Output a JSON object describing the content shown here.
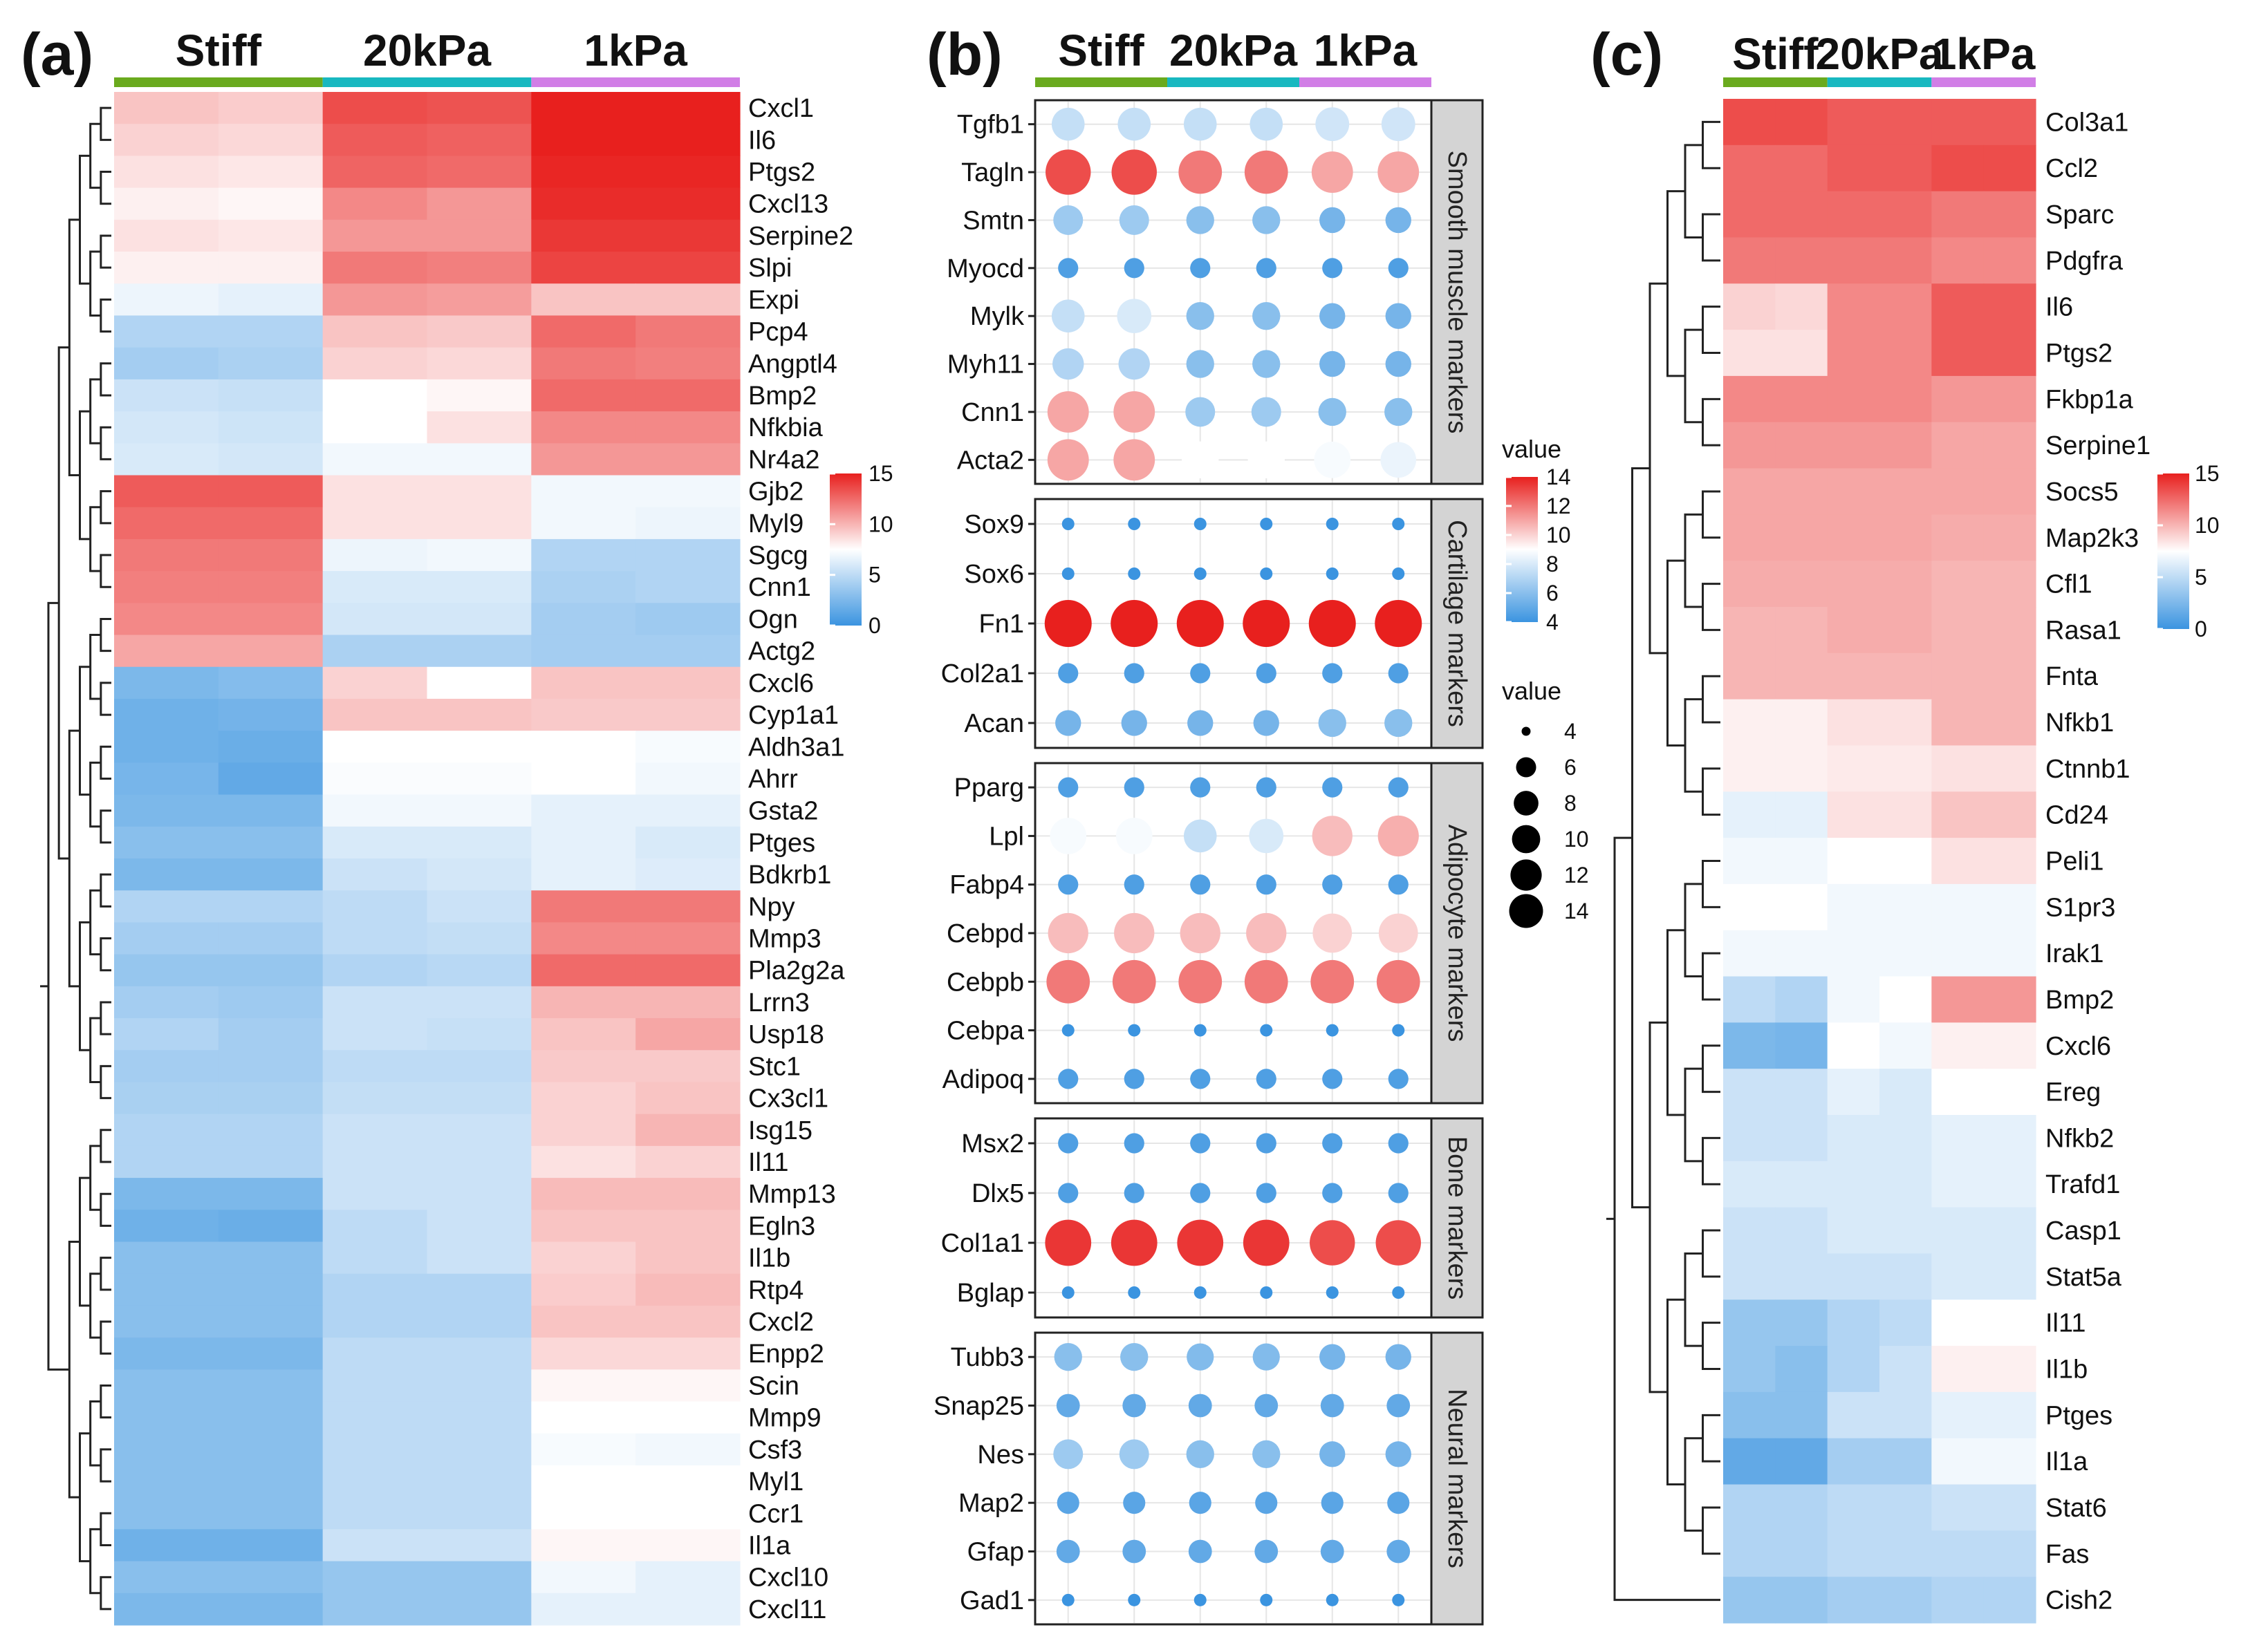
{
  "colors": {
    "stiff": "#6aaa1e",
    "kpa20": "#18b8c0",
    "kpa1": "#d17ee6",
    "low": "#3b94e0",
    "mid": "#ffffff",
    "high": "#e8201e",
    "strip": "#d4d4d4"
  },
  "chart_data": [
    {
      "type": "heatmap",
      "panel": "(a)",
      "groups": [
        "Stiff",
        "20kPa",
        "1kPa"
      ],
      "columns_per_group": 2,
      "legend": {
        "min": 0,
        "max": 15,
        "ticks": [
          15,
          10,
          5,
          0
        ]
      },
      "rows": [
        "Cxcl1",
        "Il6",
        "Ptgs2",
        "Cxcl13",
        "Serpine2",
        "Slpi",
        "Expi",
        "Pcp4",
        "Angptl4",
        "Bmp2",
        "Nfkbia",
        "Nr4a2",
        "Gjb2",
        "Myl9",
        "Sgcg",
        "Cnn1",
        "Ogn",
        "Actg2",
        "Cxcl6",
        "Cyp1a1",
        "Aldh3a1",
        "Ahrr",
        "Gsta2",
        "Ptges",
        "Bdkrb1",
        "Npy",
        "Mmp3",
        "Pla2g2a",
        "Lrrn3",
        "Usp18",
        "Stc1",
        "Cx3cl1",
        "Isg15",
        "Il11",
        "Mmp13",
        "Egln3",
        "Il1b",
        "Rtp4",
        "Cxcl2",
        "Enpp2",
        "Scin",
        "Mmp9",
        "Csf3",
        "Myl1",
        "Ccr1",
        "Il1a",
        "Cxcl10",
        "Cxcl11"
      ],
      "values": [
        [
          9.5,
          9.2,
          13.5,
          13.3,
          15.0,
          15.0
        ],
        [
          9.0,
          8.8,
          13.0,
          12.8,
          15.0,
          15.0
        ],
        [
          8.5,
          8.3,
          12.7,
          12.5,
          14.8,
          14.8
        ],
        [
          8.0,
          7.8,
          11.5,
          11.0,
          14.6,
          14.6
        ],
        [
          8.5,
          8.3,
          11.0,
          11.0,
          14.2,
          14.2
        ],
        [
          8.0,
          8.0,
          12.0,
          11.8,
          13.8,
          13.8
        ],
        [
          6.8,
          6.5,
          11.0,
          10.8,
          9.5,
          9.5
        ],
        [
          4.5,
          4.5,
          9.5,
          9.3,
          12.5,
          12.0
        ],
        [
          4.0,
          4.3,
          9.0,
          8.8,
          12.0,
          11.8
        ],
        [
          5.5,
          5.3,
          7.5,
          7.8,
          12.5,
          12.5
        ],
        [
          5.8,
          5.6,
          7.5,
          8.5,
          11.5,
          11.5
        ],
        [
          6.0,
          5.8,
          7.0,
          7.0,
          11.0,
          11.0
        ],
        [
          13.0,
          13.0,
          8.5,
          8.5,
          7.0,
          7.0
        ],
        [
          12.5,
          12.5,
          8.5,
          8.5,
          7.0,
          6.8
        ],
        [
          12.0,
          12.0,
          6.8,
          7.0,
          4.5,
          4.5
        ],
        [
          11.8,
          11.8,
          6.0,
          6.0,
          4.3,
          4.5
        ],
        [
          11.5,
          11.5,
          5.8,
          5.8,
          4.0,
          3.8
        ],
        [
          10.5,
          10.5,
          4.3,
          4.3,
          4.0,
          4.0
        ],
        [
          2.5,
          2.8,
          9.0,
          7.5,
          9.5,
          9.5
        ],
        [
          2.0,
          2.2,
          9.5,
          9.5,
          9.3,
          9.3
        ],
        [
          2.0,
          1.8,
          7.5,
          7.5,
          7.5,
          7.2
        ],
        [
          2.3,
          1.5,
          7.3,
          7.3,
          7.5,
          7.0
        ],
        [
          2.5,
          2.5,
          7.0,
          7.0,
          6.5,
          6.5
        ],
        [
          3.0,
          3.0,
          6.0,
          6.0,
          6.5,
          6.0
        ],
        [
          2.5,
          2.5,
          5.5,
          5.8,
          6.5,
          6.2
        ],
        [
          4.5,
          4.5,
          5.0,
          5.5,
          12.0,
          12.0
        ],
        [
          4.0,
          4.0,
          5.0,
          5.2,
          11.5,
          11.5
        ],
        [
          3.5,
          3.5,
          4.5,
          4.8,
          12.5,
          12.5
        ],
        [
          4.0,
          3.8,
          5.5,
          5.5,
          10.0,
          10.0
        ],
        [
          4.5,
          4.0,
          5.5,
          5.3,
          9.5,
          10.5
        ],
        [
          4.0,
          4.0,
          5.0,
          5.0,
          9.3,
          9.3
        ],
        [
          4.2,
          4.2,
          5.2,
          5.2,
          9.0,
          9.5
        ],
        [
          4.5,
          4.5,
          5.5,
          5.5,
          9.0,
          10.0
        ],
        [
          4.5,
          4.5,
          5.5,
          5.5,
          8.5,
          9.0
        ],
        [
          2.5,
          2.5,
          5.5,
          5.5,
          9.8,
          9.8
        ],
        [
          2.0,
          1.8,
          5.0,
          5.5,
          9.5,
          9.5
        ],
        [
          3.0,
          3.0,
          5.0,
          5.5,
          9.0,
          9.5
        ],
        [
          3.0,
          3.0,
          4.5,
          4.5,
          9.2,
          9.8
        ],
        [
          3.0,
          3.0,
          4.5,
          4.5,
          9.5,
          9.5
        ],
        [
          2.5,
          2.5,
          5.0,
          5.0,
          8.8,
          8.8
        ],
        [
          3.0,
          3.0,
          5.0,
          5.0,
          7.8,
          7.8
        ],
        [
          3.0,
          3.0,
          5.0,
          5.0,
          7.5,
          7.5
        ],
        [
          3.0,
          3.0,
          5.0,
          5.0,
          7.2,
          7.0
        ],
        [
          3.0,
          3.0,
          5.0,
          5.0,
          7.5,
          7.5
        ],
        [
          3.0,
          3.0,
          5.0,
          5.0,
          7.5,
          7.5
        ],
        [
          2.0,
          2.0,
          5.5,
          5.5,
          7.8,
          7.8
        ],
        [
          3.0,
          3.0,
          3.5,
          3.5,
          7.0,
          6.5
        ],
        [
          2.5,
          2.5,
          3.5,
          3.5,
          6.5,
          6.5
        ]
      ]
    },
    {
      "type": "scatter",
      "subtype": "dot-plot",
      "panel": "(b)",
      "groups": [
        "Stiff",
        "20kPa",
        "1kPa"
      ],
      "columns_per_group": 2,
      "color_legend": {
        "title": "value",
        "min": 4,
        "max": 14,
        "ticks": [
          14,
          12,
          10,
          8,
          6,
          4
        ]
      },
      "size_legend": {
        "title": "value",
        "ticks": [
          4,
          6,
          8,
          10,
          12,
          14
        ]
      },
      "facets": [
        {
          "label": "Smooth muscle markers",
          "genes": [
            "Tgfb1",
            "Tagln",
            "Smtn",
            "Myocd",
            "Mylk",
            "Myh11",
            "Cnn1",
            "Acta2"
          ],
          "values": [
            [
              7.5,
              7.5,
              7.5,
              7.5,
              7.8,
              7.8
            ],
            [
              13.0,
              13.0,
              12.0,
              12.0,
              11.0,
              11.0
            ],
            [
              6.5,
              6.5,
              6.0,
              6.0,
              5.5,
              5.5
            ],
            [
              4.5,
              4.5,
              4.5,
              4.5,
              4.5,
              4.5
            ],
            [
              7.5,
              8.0,
              6.0,
              6.0,
              5.5,
              5.5
            ],
            [
              7.0,
              7.0,
              6.0,
              6.0,
              5.5,
              5.5
            ],
            [
              11.0,
              11.0,
              6.5,
              6.5,
              6.0,
              6.0
            ],
            [
              11.0,
              11.0,
              9.0,
              9.0,
              8.8,
              8.5
            ]
          ]
        },
        {
          "label": "Cartilage markers",
          "genes": [
            "Sox9",
            "Sox6",
            "Fn1",
            "Col2a1",
            "Acan"
          ],
          "values": [
            [
              4.0,
              4.0,
              4.0,
              4.0,
              4.0,
              4.0
            ],
            [
              3.5,
              3.5,
              3.5,
              3.5,
              3.5,
              3.5
            ],
            [
              14.0,
              14.0,
              14.0,
              14.0,
              14.0,
              14.0
            ],
            [
              4.5,
              4.5,
              4.5,
              4.5,
              4.5,
              4.5
            ],
            [
              5.5,
              5.5,
              5.5,
              5.5,
              6.0,
              6.0
            ]
          ]
        },
        {
          "label": "Adipocyte markers",
          "genes": [
            "Pparg",
            "Lpl",
            "Fabp4",
            "Cebpd",
            "Cebpb",
            "Cebpa",
            "Adipoq"
          ],
          "values": [
            [
              4.5,
              4.5,
              4.5,
              4.5,
              4.5,
              4.5
            ],
            [
              8.8,
              8.8,
              7.5,
              8.0,
              10.5,
              10.8
            ],
            [
              4.5,
              4.5,
              4.5,
              4.5,
              4.5,
              4.5
            ],
            [
              10.5,
              10.5,
              10.5,
              10.5,
              10.0,
              10.0
            ],
            [
              12.0,
              12.0,
              12.0,
              12.0,
              12.0,
              12.0
            ],
            [
              4.0,
              4.0,
              4.0,
              4.0,
              4.0,
              4.0
            ],
            [
              4.5,
              4.5,
              4.5,
              4.5,
              4.5,
              4.5
            ]
          ]
        },
        {
          "label": "Bone markers",
          "genes": [
            "Msx2",
            "Dlx5",
            "Col1a1",
            "Bglap"
          ],
          "values": [
            [
              4.5,
              4.5,
              4.5,
              4.5,
              4.5,
              4.5
            ],
            [
              4.5,
              4.5,
              4.5,
              4.5,
              4.5,
              4.5
            ],
            [
              13.5,
              13.5,
              13.5,
              13.5,
              13.0,
              13.0
            ],
            [
              4.0,
              4.0,
              4.0,
              4.0,
              4.0,
              4.0
            ]
          ]
        },
        {
          "label": "Neural markers",
          "genes": [
            "Tubb3",
            "Snap25",
            "Nes",
            "Map2",
            "Gfap",
            "Gad1"
          ],
          "values": [
            [
              6.0,
              6.0,
              5.8,
              5.8,
              5.5,
              5.5
            ],
            [
              5.0,
              5.0,
              5.0,
              5.0,
              5.0,
              5.0
            ],
            [
              6.5,
              6.5,
              6.0,
              6.0,
              5.5,
              5.5
            ],
            [
              4.8,
              4.8,
              4.8,
              4.8,
              4.8,
              4.8
            ],
            [
              5.0,
              5.0,
              5.0,
              5.0,
              5.0,
              5.0
            ],
            [
              4.0,
              4.0,
              4.0,
              4.0,
              4.0,
              4.0
            ]
          ]
        }
      ]
    },
    {
      "type": "heatmap",
      "panel": "(c)",
      "groups": [
        "Stiff",
        "20kPa",
        "1kPa"
      ],
      "columns_per_group": 2,
      "legend": {
        "min": 0,
        "max": 15,
        "ticks": [
          15,
          10,
          5,
          0
        ]
      },
      "rows": [
        "Col3a1",
        "Ccl2",
        "Sparc",
        "Pdgfra",
        "Il6",
        "Ptgs2",
        "Fkbp1a",
        "Serpine1",
        "Socs5",
        "Map2k3",
        "Cfl1",
        "Rasa1",
        "Fnta",
        "Nfkb1",
        "Ctnnb1",
        "Cd24",
        "Peli1",
        "S1pr3",
        "Irak1",
        "Bmp2",
        "Cxcl6",
        "Ereg",
        "Nfkb2",
        "Trafd1",
        "Casp1",
        "Stat5a",
        "Il11",
        "Il1b",
        "Ptges",
        "Il1a",
        "Stat6",
        "Fas",
        "Cish2"
      ],
      "values": [
        [
          13.5,
          13.5,
          13.0,
          13.0,
          13.0,
          13.0
        ],
        [
          12.5,
          12.5,
          13.0,
          13.0,
          13.5,
          13.5
        ],
        [
          12.5,
          12.5,
          12.5,
          12.5,
          12.0,
          12.0
        ],
        [
          12.0,
          12.0,
          12.0,
          12.0,
          11.5,
          11.5
        ],
        [
          9.0,
          8.8,
          11.5,
          11.5,
          13.0,
          13.0
        ],
        [
          8.5,
          8.5,
          11.5,
          11.5,
          13.0,
          13.0
        ],
        [
          11.5,
          11.5,
          11.5,
          11.5,
          11.0,
          11.0
        ],
        [
          11.0,
          11.0,
          11.0,
          11.0,
          10.5,
          10.5
        ],
        [
          10.5,
          10.5,
          10.5,
          10.5,
          10.5,
          10.5
        ],
        [
          10.5,
          10.5,
          10.5,
          10.5,
          10.3,
          10.3
        ],
        [
          10.3,
          10.3,
          10.3,
          10.3,
          10.0,
          10.0
        ],
        [
          10.0,
          10.0,
          10.3,
          10.3,
          10.0,
          10.0
        ],
        [
          10.0,
          10.0,
          10.0,
          10.0,
          10.0,
          10.0
        ],
        [
          8.0,
          8.0,
          8.5,
          8.5,
          10.0,
          10.0
        ],
        [
          8.0,
          8.0,
          8.2,
          8.2,
          8.5,
          8.5
        ],
        [
          6.5,
          6.5,
          8.5,
          8.5,
          9.5,
          9.5
        ],
        [
          7.0,
          7.0,
          7.5,
          7.5,
          8.5,
          8.5
        ],
        [
          7.5,
          7.5,
          7.0,
          7.0,
          7.0,
          7.0
        ],
        [
          7.0,
          7.0,
          7.0,
          7.0,
          7.0,
          7.0
        ],
        [
          5.0,
          4.5,
          7.0,
          7.5,
          11.0,
          11.0
        ],
        [
          2.5,
          2.3,
          7.5,
          7.0,
          8.0,
          8.0
        ],
        [
          5.5,
          5.5,
          6.5,
          6.0,
          7.5,
          7.5
        ],
        [
          5.5,
          5.5,
          6.0,
          6.0,
          6.5,
          6.5
        ],
        [
          6.0,
          6.0,
          6.0,
          6.0,
          6.5,
          6.5
        ],
        [
          5.5,
          5.5,
          6.0,
          6.0,
          6.0,
          6.0
        ],
        [
          5.5,
          5.5,
          5.5,
          5.5,
          6.0,
          6.0
        ],
        [
          3.5,
          3.5,
          4.5,
          5.0,
          7.5,
          7.5
        ],
        [
          3.5,
          3.0,
          4.5,
          5.5,
          8.0,
          8.0
        ],
        [
          3.0,
          3.0,
          5.5,
          5.5,
          6.5,
          6.5
        ],
        [
          1.5,
          1.5,
          4.0,
          4.0,
          7.0,
          7.0
        ],
        [
          4.5,
          4.5,
          5.0,
          5.0,
          5.5,
          5.5
        ],
        [
          4.5,
          4.5,
          5.0,
          5.0,
          5.0,
          5.0
        ],
        [
          3.5,
          3.5,
          4.0,
          4.0,
          4.5,
          4.5
        ]
      ]
    }
  ]
}
